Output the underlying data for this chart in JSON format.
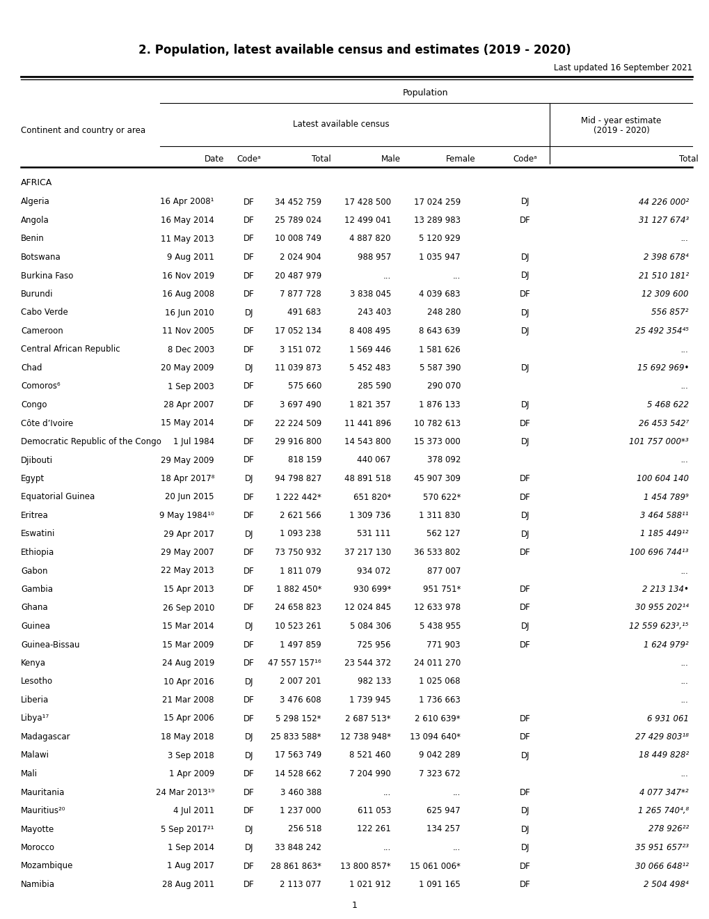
{
  "title": "2. Population, latest available census and estimates (2019 - 2020)",
  "last_updated": "Last updated 16 September 2021",
  "section": "AFRICA",
  "rows": [
    [
      "Algeria",
      "16 Apr 2008¹",
      "DF",
      "34 452 759",
      "17 428 500",
      "17 024 259",
      "DJ",
      "44 226 000²"
    ],
    [
      "Angola",
      "16 May 2014",
      "DF",
      "25 789 024",
      "12 499 041",
      "13 289 983",
      "DF",
      "31 127 674³"
    ],
    [
      "Benin",
      "11 May 2013",
      "DF",
      "10 008 749",
      "4 887 820",
      "5 120 929",
      "",
      "..."
    ],
    [
      "Botswana",
      "9 Aug 2011",
      "DF",
      "2 024 904",
      "988 957",
      "1 035 947",
      "DJ",
      "2 398 678⁴"
    ],
    [
      "Burkina Faso",
      "16 Nov 2019",
      "DF",
      "20 487 979",
      "...",
      "...",
      "DJ",
      "21 510 181²"
    ],
    [
      "Burundi",
      "16 Aug 2008",
      "DF",
      "7 877 728",
      "3 838 045",
      "4 039 683",
      "DF",
      "12 309 600"
    ],
    [
      "Cabo Verde",
      "16 Jun 2010",
      "DJ",
      "491 683",
      "243 403",
      "248 280",
      "DJ",
      "556 857²"
    ],
    [
      "Cameroon",
      "11 Nov 2005",
      "DF",
      "17 052 134",
      "8 408 495",
      "8 643 639",
      "DJ",
      "25 492 354⁴⁵"
    ],
    [
      "Central African Republic",
      "8 Dec 2003",
      "DF",
      "3 151 072",
      "1 569 446",
      "1 581 626",
      "",
      "..."
    ],
    [
      "Chad",
      "20 May 2009",
      "DJ",
      "11 039 873",
      "5 452 483",
      "5 587 390",
      "DJ",
      "15 692 969•"
    ],
    [
      "Comoros⁶",
      "1 Sep 2003",
      "DF",
      "575 660",
      "285 590",
      "290 070",
      "",
      "..."
    ],
    [
      "Congo",
      "28 Apr 2007",
      "DF",
      "3 697 490",
      "1 821 357",
      "1 876 133",
      "DJ",
      "5 468 622"
    ],
    [
      "Côte d’Ivoire",
      "15 May 2014",
      "DF",
      "22 224 509",
      "11 441 896",
      "10 782 613",
      "DF",
      "26 453 542⁷"
    ],
    [
      "Democratic Republic of the Congo",
      "1 Jul 1984",
      "DF",
      "29 916 800",
      "14 543 800",
      "15 373 000",
      "DJ",
      "101 757 000*³"
    ],
    [
      "Djibouti",
      "29 May 2009",
      "DF",
      "818 159",
      "440 067",
      "378 092",
      "",
      "..."
    ],
    [
      "Egypt",
      "18 Apr 2017⁸",
      "DJ",
      "94 798 827",
      "48 891 518",
      "45 907 309",
      "DF",
      "100 604 140"
    ],
    [
      "Equatorial Guinea",
      "20 Jun 2015",
      "DF",
      "1 222 442*",
      "651 820*",
      "570 622*",
      "DF",
      "1 454 789⁹"
    ],
    [
      "Eritrea",
      "9 May 1984¹⁰",
      "DF",
      "2 621 566",
      "1 309 736",
      "1 311 830",
      "DJ",
      "3 464 588¹¹"
    ],
    [
      "Eswatini",
      "29 Apr 2017",
      "DJ",
      "1 093 238",
      "531 111",
      "562 127",
      "DJ",
      "1 185 449¹²"
    ],
    [
      "Ethiopia",
      "29 May 2007",
      "DF",
      "73 750 932",
      "37 217 130",
      "36 533 802",
      "DF",
      "100 696 744¹³"
    ],
    [
      "Gabon",
      "22 May 2013",
      "DF",
      "1 811 079",
      "934 072",
      "877 007",
      "",
      "..."
    ],
    [
      "Gambia",
      "15 Apr 2013",
      "DF",
      "1 882 450*",
      "930 699*",
      "951 751*",
      "DF",
      "2 213 134•"
    ],
    [
      "Ghana",
      "26 Sep 2010",
      "DF",
      "24 658 823",
      "12 024 845",
      "12 633 978",
      "DF",
      "30 955 202¹⁴"
    ],
    [
      "Guinea",
      "15 Mar 2014",
      "DJ",
      "10 523 261",
      "5 084 306",
      "5 438 955",
      "DJ",
      "12 559 623³,¹⁵"
    ],
    [
      "Guinea-Bissau",
      "15 Mar 2009",
      "DF",
      "1 497 859",
      "725 956",
      "771 903",
      "DF",
      "1 624 979²"
    ],
    [
      "Kenya",
      "24 Aug 2019",
      "DF",
      "47 557 157¹⁶",
      "23 544 372",
      "24 011 270",
      "",
      "..."
    ],
    [
      "Lesotho",
      "10 Apr 2016",
      "DJ",
      "2 007 201",
      "982 133",
      "1 025 068",
      "",
      "..."
    ],
    [
      "Liberia",
      "21 Mar 2008",
      "DF",
      "3 476 608",
      "1 739 945",
      "1 736 663",
      "",
      "..."
    ],
    [
      "Libya¹⁷",
      "15 Apr 2006",
      "DF",
      "5 298 152*",
      "2 687 513*",
      "2 610 639*",
      "DF",
      "6 931 061"
    ],
    [
      "Madagascar",
      "18 May 2018",
      "DJ",
      "25 833 588*",
      "12 738 948*",
      "13 094 640*",
      "DF",
      "27 429 803¹⁸"
    ],
    [
      "Malawi",
      "3 Sep 2018",
      "DJ",
      "17 563 749",
      "8 521 460",
      "9 042 289",
      "DJ",
      "18 449 828²"
    ],
    [
      "Mali",
      "1 Apr 2009",
      "DF",
      "14 528 662",
      "7 204 990",
      "7 323 672",
      "",
      "..."
    ],
    [
      "Mauritania",
      "24 Mar 2013¹⁹",
      "DF",
      "3 460 388",
      "...",
      "...",
      "DF",
      "4 077 347*²"
    ],
    [
      "Mauritius²⁰",
      "4 Jul 2011",
      "DF",
      "1 237 000",
      "611 053",
      "625 947",
      "DJ",
      "1 265 740⁴,⁸"
    ],
    [
      "Mayotte",
      "5 Sep 2017²¹",
      "DJ",
      "256 518",
      "122 261",
      "134 257",
      "DJ",
      "278 926²²"
    ],
    [
      "Morocco",
      "1 Sep 2014",
      "DJ",
      "33 848 242",
      "...",
      "...",
      "DJ",
      "35 951 657²³"
    ],
    [
      "Mozambique",
      "1 Aug 2017",
      "DF",
      "28 861 863*",
      "13 800 857*",
      "15 061 006*",
      "DF",
      "30 066 648¹²"
    ],
    [
      "Namibia",
      "28 Aug 2011",
      "DF",
      "2 113 077",
      "1 021 912",
      "1 091 165",
      "DF",
      "2 504 498⁴"
    ]
  ]
}
